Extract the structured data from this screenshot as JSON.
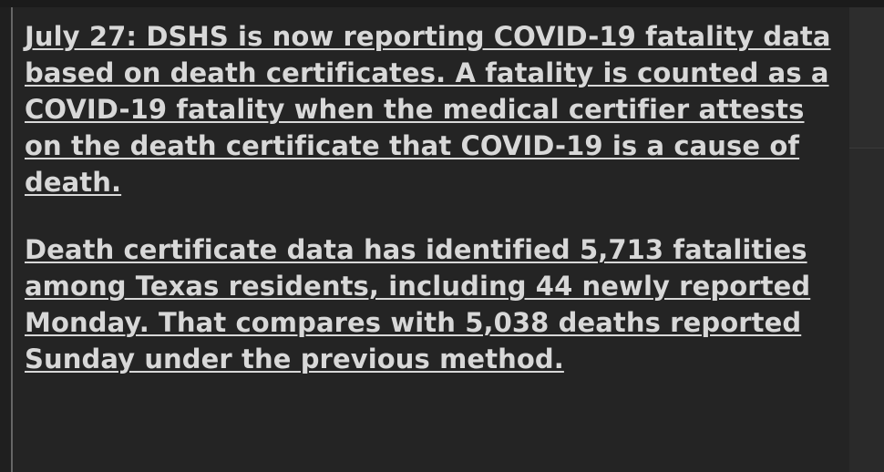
{
  "update": {
    "paragraph_1": "July 27: DSHS is now reporting COVID-19 fatality data based on death certificates. A fatality is counted as a COVID-19 fatality when the medical certifier attests on the death certificate that COVID-19 is a cause of death.",
    "paragraph_2": "Death certificate data has identified 5,713 fatalities among Texas residents, including 44 newly reported Monday. That compares with 5,038 deaths reported Sunday under the previous method."
  },
  "colors": {
    "background": "#1f1f1f",
    "panel": "#242424",
    "text": "#d8d8d8",
    "rule": "#666666"
  }
}
